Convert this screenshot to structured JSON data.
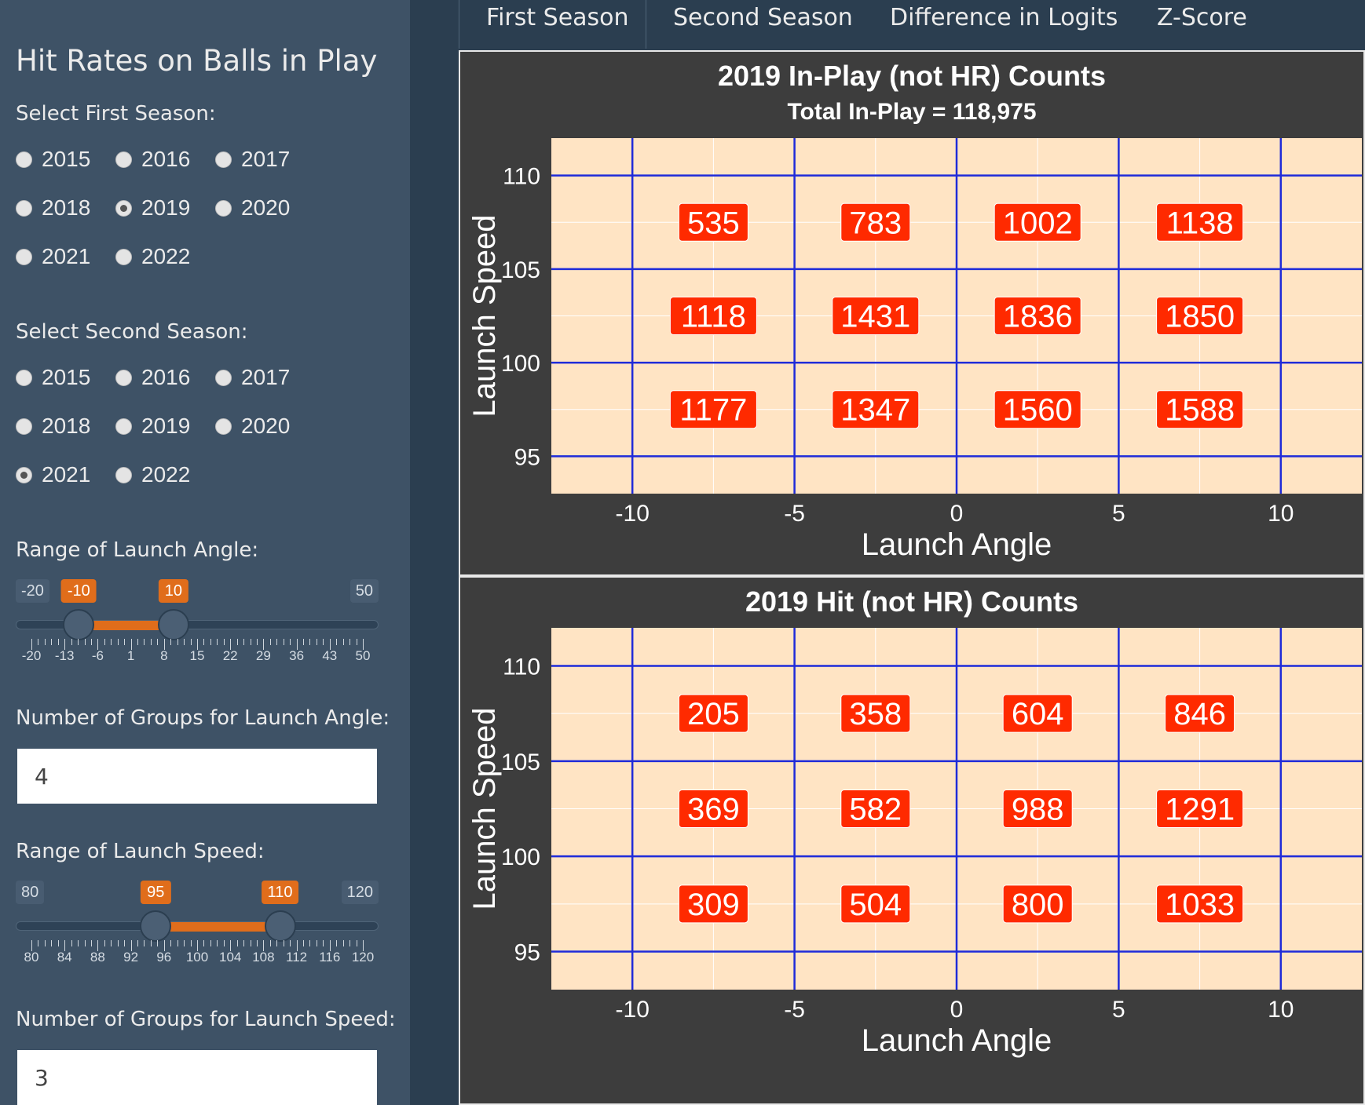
{
  "sidebar": {
    "title": "Hit Rates on Balls in Play",
    "first_season": {
      "label": "Select First Season:",
      "options": [
        "2015",
        "2016",
        "2017",
        "2018",
        "2019",
        "2020",
        "2021",
        "2022"
      ],
      "selected": "2019"
    },
    "second_season": {
      "label": "Select Second Season:",
      "options": [
        "2015",
        "2016",
        "2017",
        "2018",
        "2019",
        "2020",
        "2021",
        "2022"
      ],
      "selected": "2021"
    },
    "angle_range": {
      "label": "Range of Launch Angle:",
      "min": "-20",
      "max": "50",
      "from": "-10",
      "to": "10",
      "min_value": -20,
      "max_value": 50,
      "from_value": -10,
      "to_value": 10,
      "ticks": [
        "-20",
        "-13",
        "-6",
        "1",
        "8",
        "15",
        "22",
        "29",
        "36",
        "43",
        "50"
      ]
    },
    "angle_groups": {
      "label": "Number of Groups for Launch Angle:",
      "value": "4"
    },
    "speed_range": {
      "label": "Range of Launch Speed:",
      "min": "80",
      "max": "120",
      "from": "95",
      "to": "110",
      "min_value": 80,
      "max_value": 120,
      "from_value": 95,
      "to_value": 110,
      "ticks": [
        "80",
        "84",
        "88",
        "92",
        "96",
        "100",
        "104",
        "108",
        "112",
        "116",
        "120"
      ]
    },
    "speed_groups": {
      "label": "Number of Groups for Launch Speed:",
      "value": "3"
    }
  },
  "tabs": [
    "First Season",
    "Second Season",
    "Difference in Logits",
    "Z-Score"
  ],
  "active_tab": "First Season",
  "colors": {
    "panel": "#ffe4c4",
    "grid": "#1f2bd9",
    "label_bg": "#ff2a00",
    "accent": "#e06d1b"
  },
  "chart_data": [
    {
      "type": "heatmap",
      "title": "2019 In-Play (not HR) Counts",
      "subtitle": "Total In-Play = 118,975",
      "xlabel": "Launch Angle",
      "ylabel": "Launch Speed",
      "xlim": [
        -12.5,
        12.5
      ],
      "ylim": [
        93,
        112
      ],
      "xticks": [
        "-10",
        "-5",
        "0",
        "5",
        "10"
      ],
      "yticks": [
        "95",
        "100",
        "105",
        "110"
      ],
      "xbreaks": [
        -10,
        -5,
        0,
        5,
        10
      ],
      "ybreaks": [
        95,
        100,
        105,
        110
      ],
      "x_centers": [
        -7.5,
        -2.5,
        2.5,
        7.5
      ],
      "y_centers": [
        97.5,
        102.5,
        107.5
      ],
      "values": [
        [
          1177,
          1347,
          1560,
          1588
        ],
        [
          1118,
          1431,
          1836,
          1850
        ],
        [
          535,
          783,
          1002,
          1138
        ]
      ]
    },
    {
      "type": "heatmap",
      "title": "2019 Hit (not HR) Counts",
      "subtitle": "",
      "xlabel": "Launch Angle",
      "ylabel": "Launch Speed",
      "xlim": [
        -12.5,
        12.5
      ],
      "ylim": [
        93,
        112
      ],
      "xticks": [
        "-10",
        "-5",
        "0",
        "5",
        "10"
      ],
      "yticks": [
        "95",
        "100",
        "105",
        "110"
      ],
      "xbreaks": [
        -10,
        -5,
        0,
        5,
        10
      ],
      "ybreaks": [
        95,
        100,
        105,
        110
      ],
      "x_centers": [
        -7.5,
        -2.5,
        2.5,
        7.5
      ],
      "y_centers": [
        97.5,
        102.5,
        107.5
      ],
      "values": [
        [
          309,
          504,
          800,
          1033
        ],
        [
          369,
          582,
          988,
          1291
        ],
        [
          205,
          358,
          604,
          846
        ]
      ]
    }
  ]
}
